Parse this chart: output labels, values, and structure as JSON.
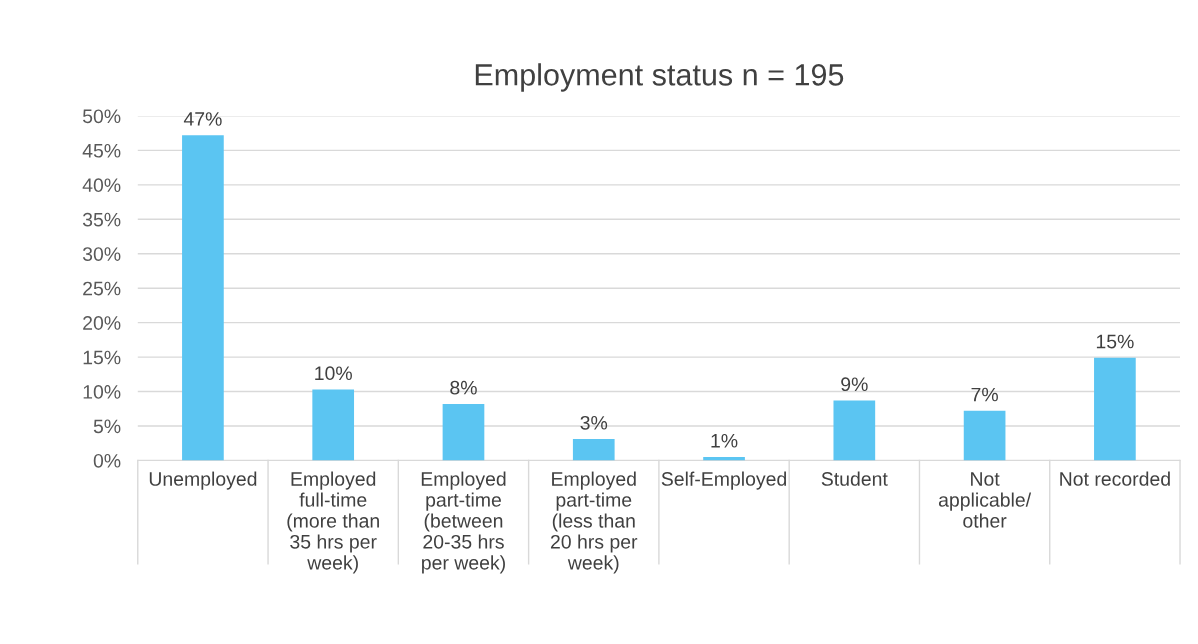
{
  "chart_data": {
    "type": "bar",
    "title": "Employment status n = 195",
    "categories": [
      "Unemployed",
      "Employed full-time (more than 35 hrs per week)",
      "Employed part-time (between 20-35 hrs per week)",
      "Employed part-time (less than 20 hrs per week)",
      "Self-Employed",
      "Student",
      "Not applicable/ other",
      "Not recorded"
    ],
    "values": [
      47.2,
      10.3,
      8.2,
      3.1,
      0.5,
      8.7,
      7.2,
      14.9
    ],
    "value_labels": [
      "47%",
      "10%",
      "8%",
      "3%",
      "1%",
      "9%",
      "7%",
      "15%"
    ],
    "color": "#5bc5f2",
    "ylim": [
      0,
      50
    ],
    "yticks": [
      {
        "value": 0,
        "label": "0%"
      },
      {
        "value": 5,
        "label": "5%"
      },
      {
        "value": 10,
        "label": "10%"
      },
      {
        "value": 15,
        "label": "15%"
      },
      {
        "value": 20,
        "label": "20%"
      },
      {
        "value": 25,
        "label": "25%"
      },
      {
        "value": 30,
        "label": "30%"
      },
      {
        "value": 35,
        "label": "35%"
      },
      {
        "value": 40,
        "label": "40%"
      },
      {
        "value": 45,
        "label": "45%"
      },
      {
        "value": 50,
        "label": "50%"
      }
    ],
    "grid": "y",
    "legend": false
  }
}
